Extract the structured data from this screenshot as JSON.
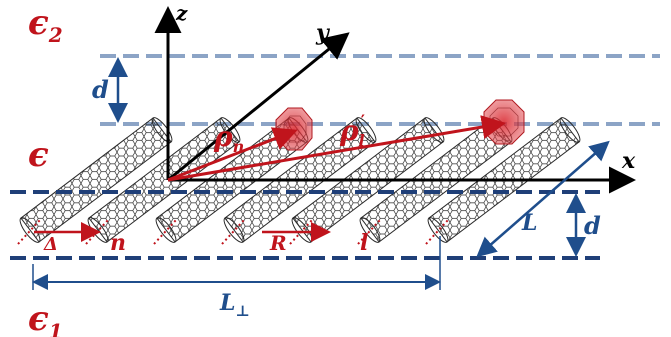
{
  "labels": {
    "eps2": "ϵ",
    "eps2_sub": "2",
    "eps": "ϵ",
    "eps1": "ϵ",
    "eps1_sub": "1",
    "d_top": "d",
    "d_right": "d",
    "L": "L",
    "L_perp": "L",
    "L_perp_sub": "⊥",
    "rho_n": "ρ",
    "rho_n_sub": "n",
    "rho_l": "ρ",
    "rho_l_sub": "l",
    "delta": "Δ",
    "n": "n",
    "R": "R",
    "l": "l",
    "axis_x": "x",
    "axis_y": "y",
    "axis_z": "z"
  },
  "colors": {
    "red": "#c0141c",
    "blue": "#1f4e8c",
    "light_blue": "#8ca4c6",
    "dark_blue": "#1f3f78",
    "tube": "#2b2b2b"
  }
}
